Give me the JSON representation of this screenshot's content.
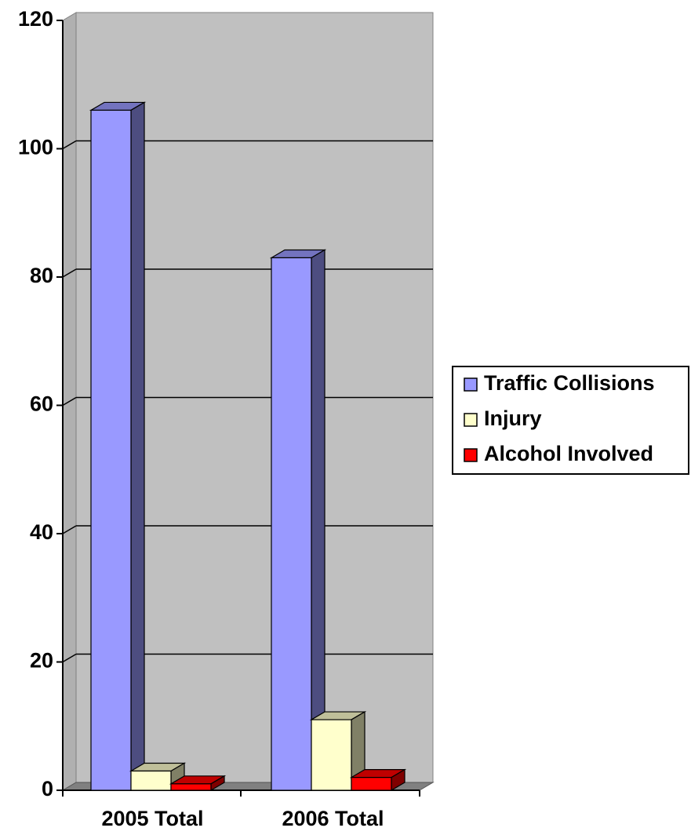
{
  "chart_data": {
    "type": "bar3d",
    "categories": [
      "2005 Total",
      "2006 Total"
    ],
    "series": [
      {
        "name": "Traffic Collisions",
        "color": "#9999ff",
        "values": [
          106,
          83
        ]
      },
      {
        "name": "Injury",
        "color": "#ffffcc",
        "values": [
          3,
          11
        ]
      },
      {
        "name": "Alcohol Involved",
        "color": "#ff0000",
        "values": [
          1,
          2
        ]
      }
    ],
    "ylim": [
      0,
      120
    ],
    "yticks": [
      0,
      20,
      40,
      60,
      80,
      100,
      120
    ],
    "grid": true,
    "legend": "right"
  }
}
